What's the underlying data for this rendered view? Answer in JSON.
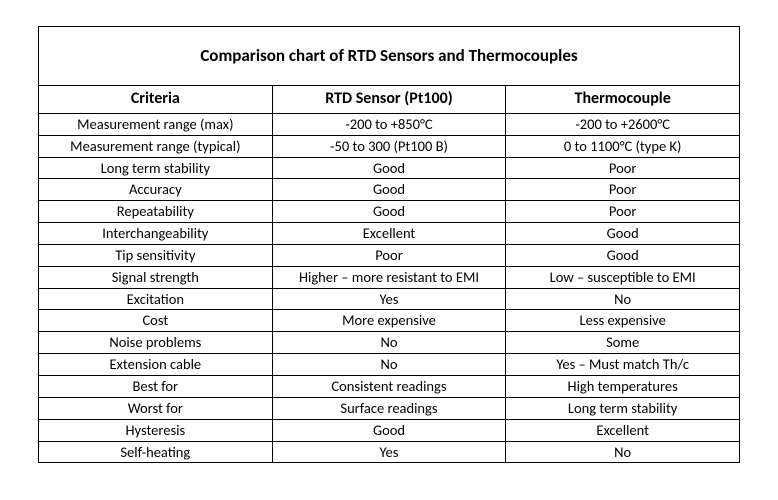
{
  "table": {
    "type": "table",
    "title": "Comparison chart of RTD Sensors and Thermocouples",
    "columns": [
      "Criteria",
      "RTD Sensor (Pt100)",
      "Thermocouple"
    ],
    "rows": [
      [
        "Measurement range (max)",
        "-200 to +850°C",
        "-200 to +2600°C"
      ],
      [
        "Measurement range (typical)",
        "-50 to 300 (Pt100 B)",
        "0 to 1100°C (type K)"
      ],
      [
        "Long term stability",
        "Good",
        "Poor"
      ],
      [
        "Accuracy",
        "Good",
        "Poor"
      ],
      [
        "Repeatability",
        "Good",
        "Poor"
      ],
      [
        "Interchangeability",
        "Excellent",
        "Good"
      ],
      [
        "Tip sensitivity",
        "Poor",
        "Good"
      ],
      [
        "Signal strength",
        "Higher – more resistant to EMI",
        "Low – susceptible to EMI"
      ],
      [
        "Excitation",
        "Yes",
        "No"
      ],
      [
        "Cost",
        "More expensive",
        "Less expensive"
      ],
      [
        "Noise problems",
        "No",
        "Some"
      ],
      [
        "Extension cable",
        "No",
        "Yes – Must match Th/c"
      ],
      [
        "Best for",
        "Consistent readings",
        "High temperatures"
      ],
      [
        "Worst for",
        "Surface readings",
        "Long term stability"
      ],
      [
        "Hysteresis",
        "Good",
        "Excellent"
      ],
      [
        "Self-heating",
        "Yes",
        "No"
      ]
    ],
    "border_color": "#000000",
    "background_color": "#ffffff",
    "title_fontsize": 17,
    "header_fontsize": 16,
    "cell_fontsize": 14.5,
    "font_family": "Calibri"
  }
}
